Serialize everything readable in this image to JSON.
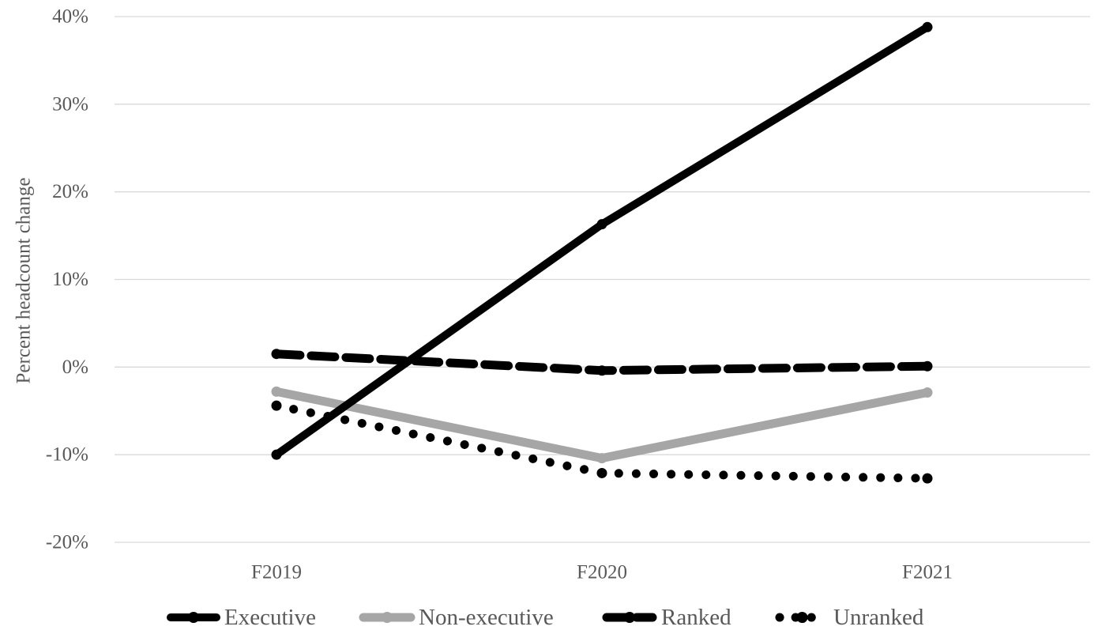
{
  "chart_data": {
    "type": "line",
    "title": "",
    "xlabel": "",
    "ylabel": "Percent headcount change",
    "categories": [
      "F2019",
      "F2020",
      "F2021"
    ],
    "ylim": [
      -20,
      40
    ],
    "y_ticks": [
      -20,
      -10,
      0,
      10,
      20,
      30,
      40
    ],
    "y_tick_labels": [
      "-20%",
      "-10%",
      "0%",
      "10%",
      "20%",
      "30%",
      "40%"
    ],
    "grid": true,
    "legend_position": "bottom",
    "series": [
      {
        "name": "Executive",
        "values": [
          -10,
          16.3,
          38.8
        ],
        "color": "#000000",
        "style": "solid-markers"
      },
      {
        "name": "Non-executive",
        "values": [
          -2.8,
          -10.4,
          -2.9
        ],
        "color": "#a6a6a6",
        "style": "solid-thick"
      },
      {
        "name": "Ranked",
        "values": [
          1.5,
          -0.4,
          0.1
        ],
        "color": "#000000",
        "style": "dashed"
      },
      {
        "name": "Unranked",
        "values": [
          -4.4,
          -12.1,
          -12.7
        ],
        "color": "#000000",
        "style": "dotted"
      }
    ]
  }
}
